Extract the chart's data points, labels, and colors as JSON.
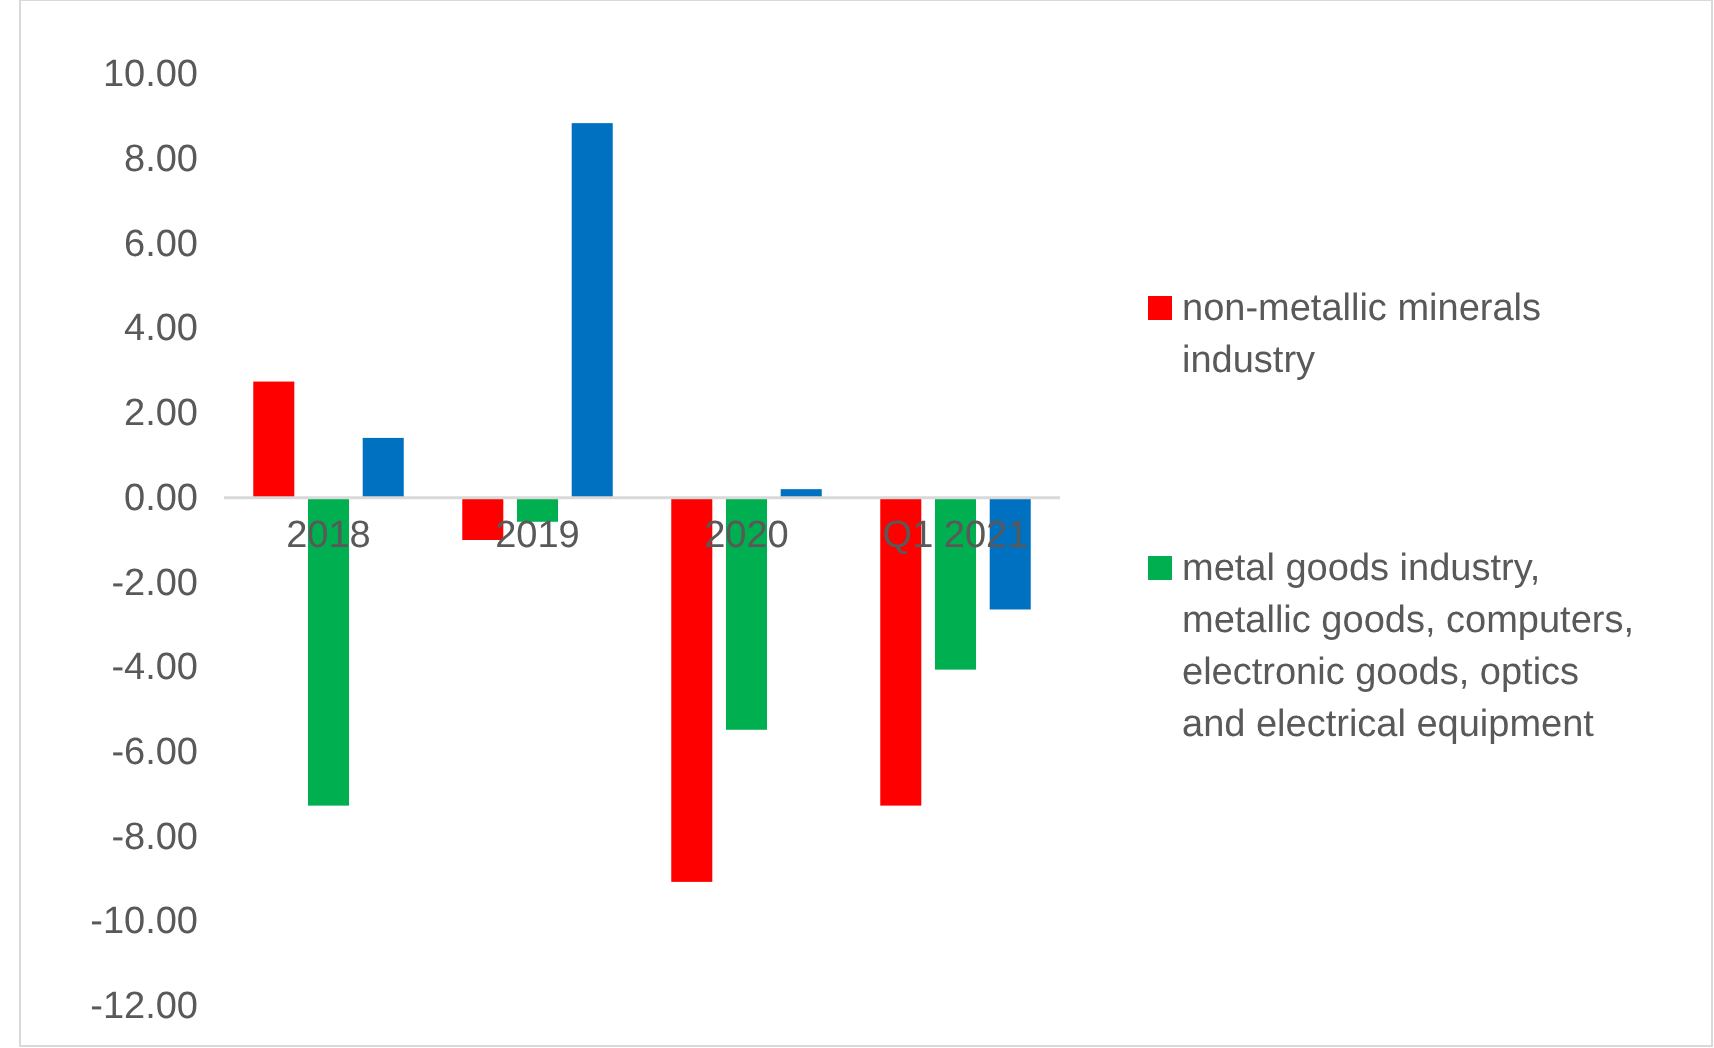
{
  "chart_data": {
    "type": "bar",
    "categories": [
      "2018",
      "2019",
      "2020",
      "Q1 2021"
    ],
    "series": [
      {
        "name": "non-metallic minerals industry",
        "color": "#ff0000",
        "values": [
          2.74,
          -1.0,
          -9.07,
          -7.27
        ]
      },
      {
        "name": "metal goods industry, metallic goods, computers, electronic goods, optics and electrical equipment",
        "color": "#00b050",
        "values": [
          -7.27,
          -0.57,
          -5.48,
          -4.06
        ]
      },
      {
        "color": "#0070c0",
        "values": [
          1.41,
          8.84,
          0.2,
          -2.64
        ]
      }
    ],
    "ylim": [
      -12,
      10
    ],
    "yticks": [
      {
        "value": -12,
        "label": "-12.00"
      },
      {
        "value": -10,
        "label": "-10.00"
      },
      {
        "value": -8,
        "label": "-8.00"
      },
      {
        "value": -6,
        "label": "-6.00"
      },
      {
        "value": -4,
        "label": "-4.00"
      },
      {
        "value": -2,
        "label": "-2.00"
      },
      {
        "value": 0,
        "label": "0.00"
      },
      {
        "value": 2,
        "label": "2.00"
      },
      {
        "value": 4,
        "label": "4.00"
      },
      {
        "value": 6,
        "label": "6.00"
      },
      {
        "value": 8,
        "label": "8.00"
      },
      {
        "value": 10,
        "label": "10.00"
      }
    ],
    "legend": "right"
  }
}
